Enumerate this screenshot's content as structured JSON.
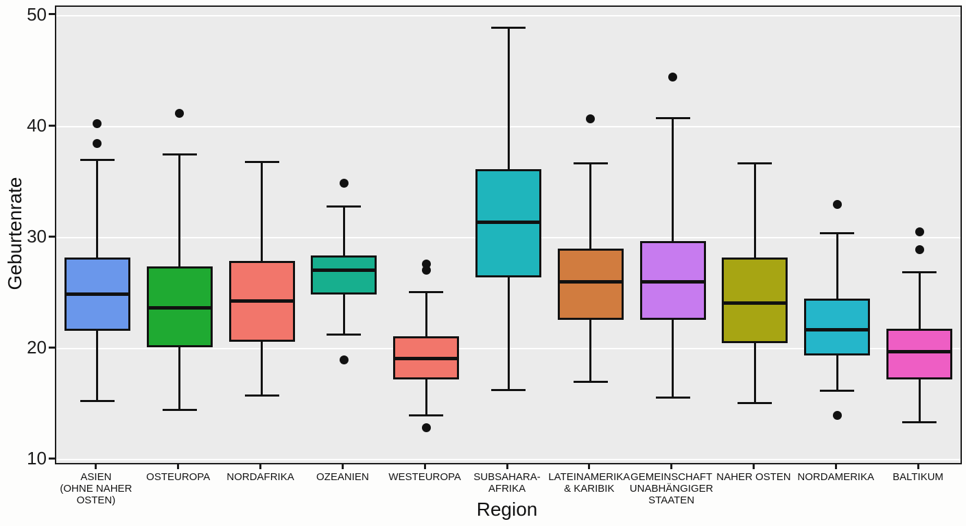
{
  "figure": {
    "kind": "boxplot"
  },
  "chart_data": {
    "type": "boxplot",
    "title": "",
    "xlabel": "Region",
    "ylabel": "Geburtenrate",
    "ylim": [
      9.7,
      50.8
    ],
    "yticks": [
      10,
      20,
      30,
      40,
      50
    ],
    "grid": "white horizontal major gridlines",
    "legend": "none",
    "panel_background": "#EBEBEB",
    "outer_background": "#FDFDFC",
    "categories": [
      "ASIEN (OHNE NAHER OSTEN)",
      "OSTEUROPA",
      "NORDAFRIKA",
      "OZEANIEN",
      "WESTEUROPA",
      "SUBSAHARA-AFRIKA",
      "LATEINAMERIKA & KARIBIK",
      "GEMEINSCHAFT UNABHÄNGIGER STAATEN",
      "NAHER OSTEN",
      "NORDAMERIKA",
      "BALTIKUM"
    ],
    "boxes": [
      {
        "label": "ASIEN (OHNE NAHER OSTEN)",
        "tick_label": "ASIEN\n(OHNE NAHER\nOSTEN)",
        "color": "#6A97EB",
        "whisker_low": 15.3,
        "q1": 21.7,
        "median": 24.9,
        "q3": 28.1,
        "whisker_high": 37.0,
        "outliers": [
          40.3,
          38.5
        ]
      },
      {
        "label": "OSTEUROPA",
        "tick_label": "OSTEUROPA",
        "color": "#1FAA32",
        "whisker_low": 14.5,
        "q1": 20.2,
        "median": 23.7,
        "q3": 27.3,
        "whisker_high": 37.5,
        "outliers": [
          41.2
        ]
      },
      {
        "label": "NORDAFRIKA",
        "tick_label": "NORDAFRIKA",
        "color": "#F2766B",
        "whisker_low": 15.8,
        "q1": 20.7,
        "median": 24.3,
        "q3": 27.8,
        "whisker_high": 36.8,
        "outliers": []
      },
      {
        "label": "OZEANIEN",
        "tick_label": "OZEANIEN",
        "color": "#17AF8E",
        "whisker_low": 21.3,
        "q1": 25.0,
        "median": 27.1,
        "q3": 28.3,
        "whisker_high": 32.8,
        "outliers": [
          34.9,
          19.0
        ]
      },
      {
        "label": "WESTEUROPA",
        "tick_label": "WESTEUROPA",
        "color": "#F2766B",
        "whisker_low": 14.0,
        "q1": 17.3,
        "median": 19.1,
        "q3": 21.0,
        "whisker_high": 25.1,
        "outliers": [
          27.6,
          27.1,
          12.9
        ]
      },
      {
        "label": "SUBSAHARA-AFRIKA",
        "tick_label": "SUBSAHARA-\nAFRIKA",
        "color": "#1FB5BC",
        "whisker_low": 16.3,
        "q1": 26.5,
        "median": 31.4,
        "q3": 36.1,
        "whisker_high": 48.9,
        "outliers": []
      },
      {
        "label": "LATEINAMERIKA & KARIBIK",
        "tick_label": "LATEINAMERIKA\n& KARIBIK",
        "color": "#D17C3F",
        "whisker_low": 17.0,
        "q1": 22.7,
        "median": 26.0,
        "q3": 28.9,
        "whisker_high": 36.7,
        "outliers": [
          40.7
        ]
      },
      {
        "label": "GEMEINSCHAFT UNABHÄNGIGER STAATEN",
        "tick_label": "GEMEINSCHAFT\nUNABHÄNGIGER\nSTAATEN",
        "color": "#C77BEF",
        "whisker_low": 15.6,
        "q1": 22.7,
        "median": 26.0,
        "q3": 29.6,
        "whisker_high": 40.8,
        "outliers": [
          44.5
        ]
      },
      {
        "label": "NAHER OSTEN",
        "tick_label": "NAHER OSTEN",
        "color": "#A7A513",
        "whisker_low": 15.1,
        "q1": 20.6,
        "median": 24.1,
        "q3": 28.1,
        "whisker_high": 36.7,
        "outliers": []
      },
      {
        "label": "NORDAMERIKA",
        "tick_label": "NORDAMERIKA",
        "color": "#25B6CA",
        "whisker_low": 16.2,
        "q1": 19.5,
        "median": 21.7,
        "q3": 24.4,
        "whisker_high": 30.4,
        "outliers": [
          33.0,
          14.0
        ]
      },
      {
        "label": "BALTIKUM",
        "tick_label": "BALTIKUM",
        "color": "#EE5EC4",
        "whisker_low": 13.4,
        "q1": 17.3,
        "median": 19.7,
        "q3": 21.7,
        "whisker_high": 26.9,
        "outliers": [
          30.5,
          28.9
        ]
      }
    ]
  }
}
